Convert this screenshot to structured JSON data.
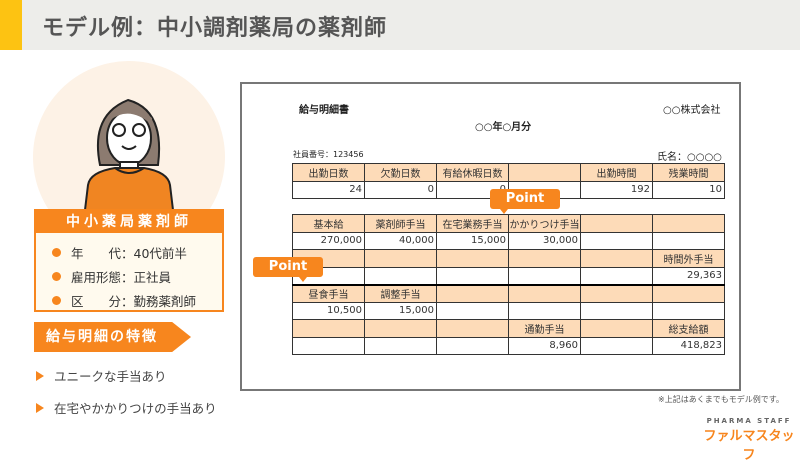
{
  "header": {
    "title": "モデル例：中小調剤薬局の薬剤師"
  },
  "profile": {
    "title": "中小薬局薬剤師",
    "items": [
      {
        "label": "年　　代",
        "value": "40代前半"
      },
      {
        "label": "雇用形態",
        "value": "正社員"
      },
      {
        "label": "区　　分",
        "value": "勤務薬剤師"
      }
    ]
  },
  "features": {
    "title": "給与明細の特徴",
    "items": [
      "ユニークな手当あり",
      "在宅やかかりつけの手当あり"
    ]
  },
  "payslip": {
    "title": "給与明細書",
    "company": "○○株式会社",
    "period": "○○年○月分",
    "employee_no": "社員番号：123456",
    "name": "氏名：○○○○",
    "attendance": {
      "headers": [
        "出勤日数",
        "欠勤日数",
        "有給休暇日数",
        "",
        "出勤時間",
        "残業時間"
      ],
      "values": [
        "24",
        "0",
        "0",
        "",
        "192",
        "10"
      ]
    },
    "pay_rows": [
      {
        "headers": [
          "基本給",
          "薬剤師手当",
          "在宅業務手当",
          "かかりつけ手当",
          "",
          ""
        ],
        "values": [
          "270,000",
          "40,000",
          "15,000",
          "30,000",
          "",
          ""
        ]
      },
      {
        "headers": [
          "",
          "",
          "",
          "",
          "",
          "時間外手当"
        ],
        "values": [
          "",
          "",
          "",
          "",
          "",
          "29,363"
        ]
      },
      {
        "headers": [
          "昼食手当",
          "調整手当",
          "",
          "",
          "",
          ""
        ],
        "values": [
          "10,500",
          "15,000",
          "",
          "",
          "",
          ""
        ]
      },
      {
        "headers": [
          "",
          "",
          "",
          "通勤手当",
          "",
          "総支給額"
        ],
        "values": [
          "",
          "",
          "",
          "8,960",
          "",
          "418,823"
        ]
      }
    ]
  },
  "callouts": [
    "Point",
    "Point"
  ],
  "note": "※上記はあくまでもモデル例です。",
  "logo": {
    "en": "PHARMA STAFF",
    "ja": "ファルマスタッフ"
  },
  "colors": {
    "accent": "#f7861e",
    "header_bg": "#ededea",
    "header_bar": "#fdc312",
    "cell_header": "#fddbb8"
  }
}
